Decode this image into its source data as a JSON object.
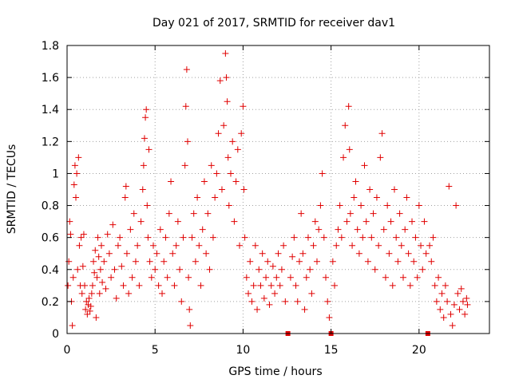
{
  "chart_data": {
    "type": "scatter",
    "title": "Day 021 of 2017, SRMTID for receiver dav1",
    "xlabel": "GPS time / hours",
    "ylabel": "SRMTID / TECUs",
    "xlim": [
      0,
      24
    ],
    "ylim": [
      0,
      1.8
    ],
    "xticks": [
      0,
      5,
      10,
      15,
      20
    ],
    "xtick_labels": [
      "0",
      "5",
      "10",
      "15",
      "20"
    ],
    "yticks": [
      0,
      0.2,
      0.4,
      0.6,
      0.8,
      1,
      1.2,
      1.4,
      1.6,
      1.8
    ],
    "ytick_labels": [
      "0",
      "0.2",
      "0.4",
      "0.6",
      "0.8",
      "1",
      "1.2",
      "1.4",
      "1.6",
      "1.8"
    ],
    "grid": true,
    "marker": "+",
    "color": "#e00000",
    "gap_markers_x": [
      12.55,
      15.0,
      20.5
    ],
    "series": [
      {
        "name": "SRMTID",
        "points": [
          [
            0.05,
            0.3
          ],
          [
            0.1,
            0.45
          ],
          [
            0.15,
            0.7
          ],
          [
            0.2,
            0.62
          ],
          [
            0.25,
            0.2
          ],
          [
            0.3,
            0.05
          ],
          [
            0.35,
            0.35
          ],
          [
            0.4,
            0.93
          ],
          [
            0.45,
            1.05
          ],
          [
            0.5,
            0.85
          ],
          [
            0.55,
            1.0
          ],
          [
            0.6,
            0.4
          ],
          [
            0.65,
            1.1
          ],
          [
            0.7,
            0.55
          ],
          [
            0.75,
            0.3
          ],
          [
            0.8,
            0.6
          ],
          [
            0.85,
            0.25
          ],
          [
            0.9,
            0.42
          ],
          [
            0.95,
            0.62
          ],
          [
            1.0,
            0.3
          ],
          [
            1.05,
            0.15
          ],
          [
            1.1,
            0.2
          ],
          [
            1.15,
            0.12
          ],
          [
            1.2,
            0.18
          ],
          [
            1.25,
            0.22
          ],
          [
            1.3,
            0.14
          ],
          [
            1.35,
            0.17
          ],
          [
            1.4,
            0.25
          ],
          [
            1.45,
            0.3
          ],
          [
            1.5,
            0.45
          ],
          [
            1.55,
            0.38
          ],
          [
            1.6,
            0.52
          ],
          [
            1.65,
            0.1
          ],
          [
            1.7,
            0.35
          ],
          [
            1.75,
            0.6
          ],
          [
            1.8,
            0.48
          ],
          [
            1.85,
            0.25
          ],
          [
            1.9,
            0.4
          ],
          [
            1.95,
            0.55
          ],
          [
            2.0,
            0.32
          ],
          [
            2.1,
            0.45
          ],
          [
            2.2,
            0.28
          ],
          [
            2.3,
            0.62
          ],
          [
            2.4,
            0.5
          ],
          [
            2.5,
            0.35
          ],
          [
            2.6,
            0.68
          ],
          [
            2.7,
            0.4
          ],
          [
            2.8,
            0.22
          ],
          [
            2.9,
            0.55
          ],
          [
            3.0,
            0.6
          ],
          [
            3.1,
            0.42
          ],
          [
            3.2,
            0.3
          ],
          [
            3.3,
            0.85
          ],
          [
            3.35,
            0.92
          ],
          [
            3.4,
            0.5
          ],
          [
            3.5,
            0.25
          ],
          [
            3.6,
            0.65
          ],
          [
            3.7,
            0.35
          ],
          [
            3.8,
            0.75
          ],
          [
            3.9,
            0.45
          ],
          [
            4.0,
            0.55
          ],
          [
            4.1,
            0.3
          ],
          [
            4.2,
            0.7
          ],
          [
            4.3,
            0.9
          ],
          [
            4.35,
            1.05
          ],
          [
            4.4,
            1.22
          ],
          [
            4.45,
            1.35
          ],
          [
            4.5,
            1.4
          ],
          [
            4.55,
            0.8
          ],
          [
            4.6,
            0.6
          ],
          [
            4.65,
            1.15
          ],
          [
            4.7,
            0.45
          ],
          [
            4.8,
            0.35
          ],
          [
            4.9,
            0.55
          ],
          [
            5.0,
            0.4
          ],
          [
            5.1,
            0.5
          ],
          [
            5.2,
            0.3
          ],
          [
            5.3,
            0.65
          ],
          [
            5.4,
            0.25
          ],
          [
            5.5,
            0.45
          ],
          [
            5.6,
            0.6
          ],
          [
            5.7,
            0.35
          ],
          [
            5.8,
            0.75
          ],
          [
            5.9,
            0.95
          ],
          [
            6.0,
            0.5
          ],
          [
            6.1,
            0.3
          ],
          [
            6.2,
            0.55
          ],
          [
            6.3,
            0.7
          ],
          [
            6.4,
            0.4
          ],
          [
            6.5,
            0.2
          ],
          [
            6.6,
            0.6
          ],
          [
            6.7,
            1.05
          ],
          [
            6.75,
            1.42
          ],
          [
            6.8,
            1.65
          ],
          [
            6.85,
            1.2
          ],
          [
            6.9,
            0.35
          ],
          [
            6.95,
            0.15
          ],
          [
            7.0,
            0.05
          ],
          [
            7.1,
            0.6
          ],
          [
            7.2,
            0.75
          ],
          [
            7.3,
            0.45
          ],
          [
            7.4,
            0.85
          ],
          [
            7.5,
            0.55
          ],
          [
            7.6,
            0.3
          ],
          [
            7.7,
            0.65
          ],
          [
            7.8,
            0.95
          ],
          [
            7.9,
            0.5
          ],
          [
            8.0,
            0.75
          ],
          [
            8.1,
            0.4
          ],
          [
            8.2,
            1.05
          ],
          [
            8.3,
            0.6
          ],
          [
            8.4,
            0.85
          ],
          [
            8.5,
            1.0
          ],
          [
            8.6,
            1.25
          ],
          [
            8.7,
            1.58
          ],
          [
            8.8,
            0.9
          ],
          [
            8.9,
            1.3
          ],
          [
            9.0,
            1.75
          ],
          [
            9.05,
            1.6
          ],
          [
            9.1,
            1.45
          ],
          [
            9.15,
            1.1
          ],
          [
            9.2,
            0.8
          ],
          [
            9.3,
            1.0
          ],
          [
            9.4,
            1.2
          ],
          [
            9.5,
            0.7
          ],
          [
            9.6,
            0.95
          ],
          [
            9.7,
            1.15
          ],
          [
            9.8,
            0.55
          ],
          [
            9.9,
            1.25
          ],
          [
            10.0,
            1.42
          ],
          [
            10.05,
            0.9
          ],
          [
            10.1,
            0.6
          ],
          [
            10.2,
            0.35
          ],
          [
            10.3,
            0.25
          ],
          [
            10.4,
            0.45
          ],
          [
            10.5,
            0.2
          ],
          [
            10.6,
            0.3
          ],
          [
            10.7,
            0.55
          ],
          [
            10.8,
            0.15
          ],
          [
            10.9,
            0.4
          ],
          [
            11.0,
            0.3
          ],
          [
            11.1,
            0.5
          ],
          [
            11.2,
            0.22
          ],
          [
            11.3,
            0.35
          ],
          [
            11.4,
            0.45
          ],
          [
            11.5,
            0.18
          ],
          [
            11.6,
            0.3
          ],
          [
            11.7,
            0.42
          ],
          [
            11.8,
            0.25
          ],
          [
            11.9,
            0.35
          ],
          [
            12.0,
            0.5
          ],
          [
            12.1,
            0.3
          ],
          [
            12.2,
            0.4
          ],
          [
            12.3,
            0.55
          ],
          [
            12.4,
            0.2
          ],
          [
            12.7,
            0.35
          ],
          [
            12.8,
            0.48
          ],
          [
            12.9,
            0.6
          ],
          [
            13.0,
            0.3
          ],
          [
            13.1,
            0.2
          ],
          [
            13.2,
            0.45
          ],
          [
            13.3,
            0.75
          ],
          [
            13.4,
            0.5
          ],
          [
            13.5,
            0.15
          ],
          [
            13.6,
            0.35
          ],
          [
            13.7,
            0.6
          ],
          [
            13.8,
            0.4
          ],
          [
            13.9,
            0.25
          ],
          [
            14.0,
            0.55
          ],
          [
            14.1,
            0.7
          ],
          [
            14.2,
            0.45
          ],
          [
            14.3,
            0.65
          ],
          [
            14.4,
            0.8
          ],
          [
            14.5,
            1.0
          ],
          [
            14.6,
            0.6
          ],
          [
            14.7,
            0.35
          ],
          [
            14.8,
            0.2
          ],
          [
            14.9,
            0.1
          ],
          [
            15.1,
            0.45
          ],
          [
            15.2,
            0.3
          ],
          [
            15.3,
            0.55
          ],
          [
            15.4,
            0.65
          ],
          [
            15.5,
            0.8
          ],
          [
            15.6,
            0.6
          ],
          [
            15.7,
            1.1
          ],
          [
            15.8,
            1.3
          ],
          [
            15.9,
            0.7
          ],
          [
            16.0,
            1.42
          ],
          [
            16.05,
            1.15
          ],
          [
            16.1,
            0.75
          ],
          [
            16.2,
            0.55
          ],
          [
            16.3,
            0.85
          ],
          [
            16.4,
            0.95
          ],
          [
            16.5,
            0.65
          ],
          [
            16.6,
            0.5
          ],
          [
            16.7,
            0.8
          ],
          [
            16.8,
            0.6
          ],
          [
            16.9,
            1.05
          ],
          [
            17.0,
            0.7
          ],
          [
            17.1,
            0.45
          ],
          [
            17.2,
            0.9
          ],
          [
            17.3,
            0.6
          ],
          [
            17.4,
            0.75
          ],
          [
            17.5,
            0.4
          ],
          [
            17.6,
            0.85
          ],
          [
            17.7,
            0.55
          ],
          [
            17.8,
            1.1
          ],
          [
            17.9,
            1.25
          ],
          [
            18.0,
            0.65
          ],
          [
            18.1,
            0.35
          ],
          [
            18.2,
            0.8
          ],
          [
            18.3,
            0.5
          ],
          [
            18.4,
            0.7
          ],
          [
            18.5,
            0.3
          ],
          [
            18.6,
            0.9
          ],
          [
            18.7,
            0.6
          ],
          [
            18.8,
            0.45
          ],
          [
            18.9,
            0.75
          ],
          [
            19.0,
            0.55
          ],
          [
            19.1,
            0.35
          ],
          [
            19.2,
            0.65
          ],
          [
            19.3,
            0.85
          ],
          [
            19.4,
            0.5
          ],
          [
            19.5,
            0.3
          ],
          [
            19.6,
            0.7
          ],
          [
            19.7,
            0.45
          ],
          [
            19.8,
            0.6
          ],
          [
            19.9,
            0.35
          ],
          [
            20.0,
            0.8
          ],
          [
            20.1,
            0.55
          ],
          [
            20.2,
            0.4
          ],
          [
            20.3,
            0.7
          ],
          [
            20.4,
            0.5
          ],
          [
            20.6,
            0.55
          ],
          [
            20.7,
            0.45
          ],
          [
            20.8,
            0.6
          ],
          [
            20.9,
            0.3
          ],
          [
            21.0,
            0.2
          ],
          [
            21.1,
            0.35
          ],
          [
            21.2,
            0.15
          ],
          [
            21.3,
            0.25
          ],
          [
            21.4,
            0.1
          ],
          [
            21.5,
            0.3
          ],
          [
            21.6,
            0.2
          ],
          [
            21.7,
            0.92
          ],
          [
            21.8,
            0.12
          ],
          [
            21.9,
            0.05
          ],
          [
            22.0,
            0.18
          ],
          [
            22.1,
            0.8
          ],
          [
            22.2,
            0.25
          ],
          [
            22.3,
            0.15
          ],
          [
            22.4,
            0.28
          ],
          [
            22.5,
            0.2
          ],
          [
            22.6,
            0.12
          ],
          [
            22.7,
            0.22
          ],
          [
            22.75,
            0.18
          ]
        ]
      }
    ]
  }
}
